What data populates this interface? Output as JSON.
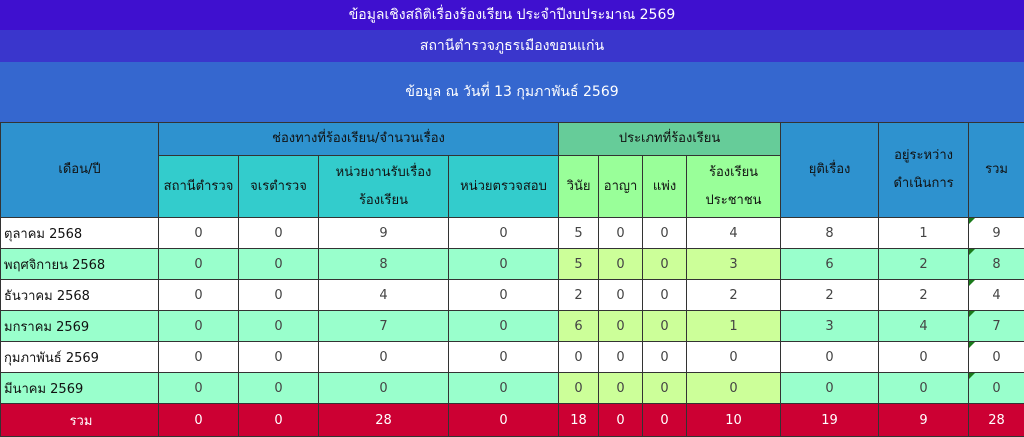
{
  "header": {
    "title": "ข้อมูลเชิงสถิติเรื่องร้องเรียน ประจำปีงบประมาณ 2569",
    "station": "สถานีตำรวจภูธรเมืองขอนแก่น",
    "as_of": "ข้อมูล ณ วันที่ 13 กุมภาพันธ์ 2569"
  },
  "columns": {
    "month": "เดือน/ปี",
    "channels_group": "ช่องทางที่ร้องเรียน/จำนวนเรื่อง",
    "channels": [
      "สถานีตำรวจ",
      "จเรตำรวจ",
      "หน่วยงานรับเรื่อง\nร้องเรียน",
      "หน่วยตรวจสอบ"
    ],
    "types_group": "ประเภทที่ร้องเรียน",
    "types": [
      "วินัย",
      "อาญา",
      "แพ่ง",
      "ร้องเรียน\nประชาชน"
    ],
    "resolved": "ยุติเรื่อง",
    "in_progress": "อยู่ระหว่าง\nดำเนินการ",
    "total": "รวม"
  },
  "rows": [
    {
      "month": "ตุลาคม 2568",
      "values": [
        "0",
        "0",
        "9",
        "0",
        "5",
        "0",
        "0",
        "4",
        "8",
        "1",
        "9"
      ]
    },
    {
      "month": "พฤศจิกายน 2568",
      "values": [
        "0",
        "0",
        "8",
        "0",
        "5",
        "0",
        "0",
        "3",
        "6",
        "2",
        "8"
      ]
    },
    {
      "month": "ธันวาคม 2568",
      "values": [
        "0",
        "0",
        "4",
        "0",
        "2",
        "0",
        "0",
        "2",
        "2",
        "2",
        "4"
      ]
    },
    {
      "month": "มกราคม 2569",
      "values": [
        "0",
        "0",
        "7",
        "0",
        "6",
        "0",
        "0",
        "1",
        "3",
        "4",
        "7"
      ]
    },
    {
      "month": "กุมภาพันธ์ 2569",
      "values": [
        "0",
        "0",
        "0",
        "0",
        "0",
        "0",
        "0",
        "0",
        "0",
        "0",
        "0"
      ]
    },
    {
      "month": "มีนาคม 2569",
      "values": [
        "0",
        "0",
        "0",
        "0",
        "0",
        "0",
        "0",
        "0",
        "0",
        "0",
        "0"
      ]
    }
  ],
  "totals": {
    "label": "รวม",
    "values": [
      "0",
      "0",
      "28",
      "0",
      "18",
      "0",
      "0",
      "10",
      "19",
      "9",
      "28"
    ]
  },
  "colors": {
    "title_bg": "#3f10cf",
    "header_blue": "#2e92cf",
    "teal": "#33cccc",
    "green": "#99ff99",
    "mint_row": "#99ffcc",
    "total_row": "#cc0033"
  }
}
